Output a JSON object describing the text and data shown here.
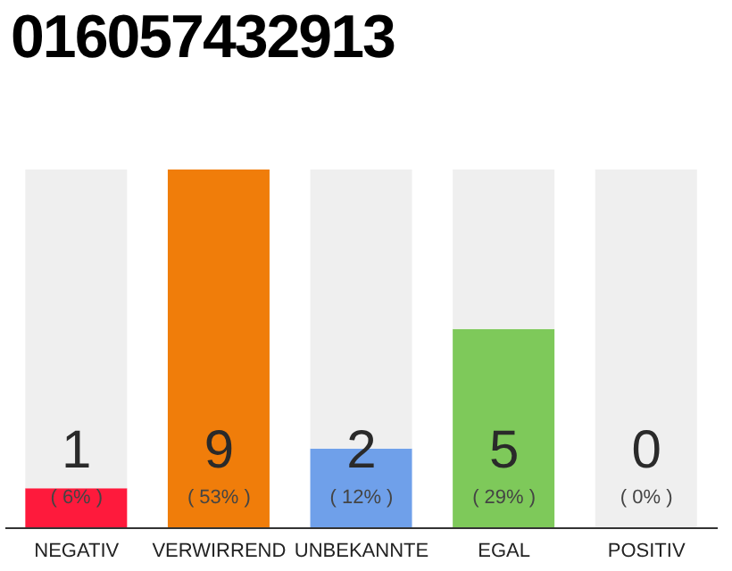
{
  "chart_data": {
    "type": "bar",
    "title": "016057432913",
    "categories": [
      "NEGATIV",
      "VERWIRREND",
      "UNBEKANNTE",
      "EGAL",
      "POSITIV"
    ],
    "stacked": true,
    "series": [
      {
        "colors": [
          "#fe1a3c",
          "#f07d0a",
          "#6fa0ea",
          "#7ec95a",
          "#cccccc"
        ],
        "values": [
          1,
          9,
          2,
          5,
          0
        ],
        "value_labels": [
          "1",
          "9",
          "2",
          "5",
          null
        ]
      },
      {
        "color": "#efefef",
        "values": [
          8,
          0,
          7,
          4,
          9
        ]
      }
    ],
    "tick_labels": "x",
    "annotations": [
      "( 6% )",
      "( 53% )",
      "( 12% )",
      "( 29% )",
      "( 0% )",
      "0"
    ]
  }
}
